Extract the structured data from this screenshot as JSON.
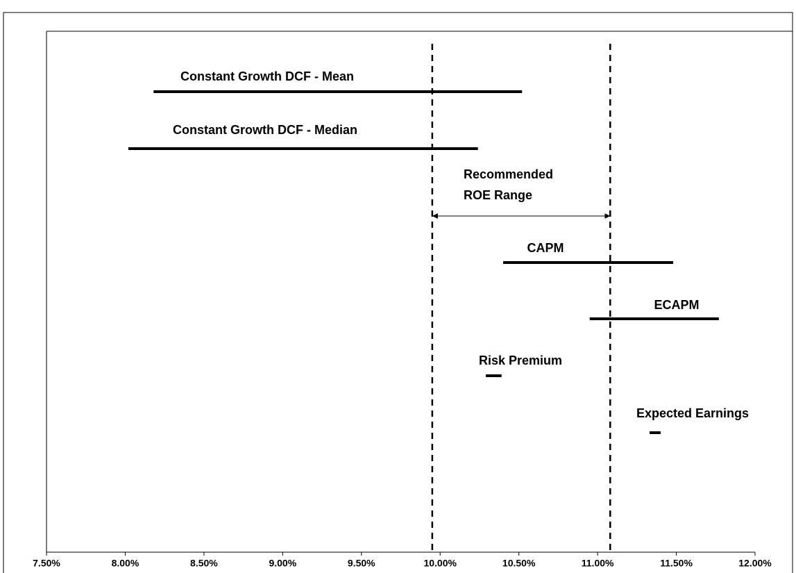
{
  "chart_data": {
    "type": "range",
    "categories": [
      "Constant Growth DCF - Mean",
      "Constant Growth DCF - Median",
      "CAPM",
      "ECAPM",
      "Risk Premium",
      "Expected Earnings"
    ],
    "low": [
      8.18,
      8.02,
      10.4,
      10.95,
      10.29,
      11.33
    ],
    "high": [
      10.52,
      10.24,
      11.48,
      11.77,
      10.39,
      11.4
    ],
    "color": "#000000",
    "recommended_range": [
      9.95,
      11.08
    ],
    "annotation": [
      "Recommended",
      "ROE Range"
    ],
    "xlim": [
      7.5,
      12
    ],
    "xticks": [
      {
        "value": 7.5,
        "label": "7.50%"
      },
      {
        "value": 8,
        "label": "8.00%"
      },
      {
        "value": 8.5,
        "label": "8.50%"
      },
      {
        "value": 9,
        "label": "9.00%"
      },
      {
        "value": 9.5,
        "label": "9.50%"
      },
      {
        "value": 10,
        "label": "10.00%"
      },
      {
        "value": 10.5,
        "label": "10.50%"
      },
      {
        "value": 11,
        "label": "11.00%"
      },
      {
        "value": 11.5,
        "label": "11.50%"
      },
      {
        "value": 12,
        "label": "12.00%"
      }
    ]
  }
}
